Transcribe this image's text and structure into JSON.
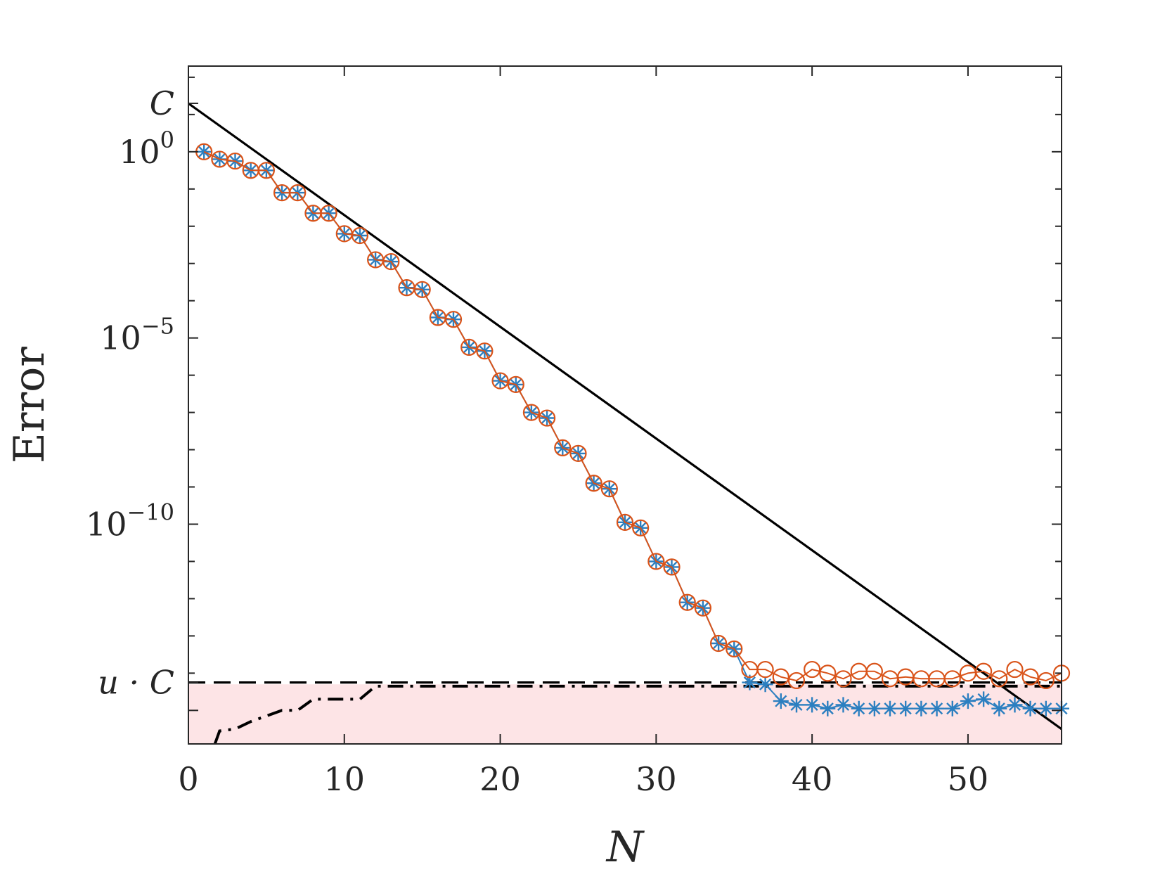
{
  "chart_data": {
    "type": "line",
    "xlabel": "N",
    "ylabel": "Error",
    "xlim": [
      0,
      56
    ],
    "ylim_log10": [
      -15.9,
      2.3
    ],
    "y_scale": "log",
    "grid": false,
    "xticks": [
      0,
      10,
      20,
      30,
      40,
      50
    ],
    "yticks": [
      {
        "base": "10",
        "exp": "0",
        "value": 0
      },
      {
        "base": "10",
        "exp": "−5",
        "value": -5
      },
      {
        "base": "10",
        "exp": "−10",
        "value": -10
      }
    ],
    "special_yticks": [
      {
        "label": "C",
        "value": 1.3
      },
      {
        "label": "u · C",
        "value": -14.25
      }
    ],
    "colors": {
      "series_asterisk": "#2c7fc0",
      "series_circle": "#d95319",
      "bound_line": "#000000",
      "shaded_region": "#fde4e6"
    },
    "shaded_region": {
      "y_from": -15.9,
      "y_to": -14.3
    },
    "series": [
      {
        "marker": "asterisk",
        "color": "#2c7fc0",
        "x": [
          1,
          2,
          3,
          4,
          5,
          6,
          7,
          8,
          9,
          10,
          11,
          12,
          13,
          14,
          15,
          16,
          17,
          18,
          19,
          20,
          21,
          22,
          23,
          24,
          25,
          26,
          27,
          28,
          29,
          30,
          31,
          32,
          33,
          34,
          35,
          36,
          37,
          38,
          39,
          40,
          41,
          42,
          43,
          44,
          45,
          46,
          47,
          48,
          49,
          50,
          51,
          52,
          53,
          54,
          55,
          56
        ],
        "log10_y": [
          0.0,
          -0.2,
          -0.25,
          -0.5,
          -0.5,
          -1.1,
          -1.1,
          -1.65,
          -1.65,
          -2.2,
          -2.25,
          -2.9,
          -2.95,
          -3.65,
          -3.7,
          -4.45,
          -4.5,
          -5.25,
          -5.35,
          -6.15,
          -6.25,
          -7.0,
          -7.15,
          -7.95,
          -8.1,
          -8.9,
          -9.05,
          -9.95,
          -10.1,
          -11.0,
          -11.15,
          -12.1,
          -12.25,
          -13.2,
          -13.35,
          -14.25,
          -14.3,
          -14.75,
          -14.85,
          -14.85,
          -14.95,
          -14.85,
          -14.95,
          -14.95,
          -14.95,
          -14.95,
          -14.95,
          -14.95,
          -14.95,
          -14.75,
          -14.7,
          -14.95,
          -14.85,
          -14.95,
          -14.95,
          -14.95
        ]
      },
      {
        "marker": "circle",
        "color": "#d95319",
        "x": [
          1,
          2,
          3,
          4,
          5,
          6,
          7,
          8,
          9,
          10,
          11,
          12,
          13,
          14,
          15,
          16,
          17,
          18,
          19,
          20,
          21,
          22,
          23,
          24,
          25,
          26,
          27,
          28,
          29,
          30,
          31,
          32,
          33,
          34,
          35,
          36,
          37,
          38,
          39,
          40,
          41,
          42,
          43,
          44,
          45,
          46,
          47,
          48,
          49,
          50,
          51,
          52,
          53,
          54,
          55,
          56
        ],
        "log10_y": [
          0.0,
          -0.2,
          -0.25,
          -0.5,
          -0.5,
          -1.1,
          -1.1,
          -1.65,
          -1.65,
          -2.2,
          -2.25,
          -2.9,
          -2.95,
          -3.65,
          -3.7,
          -4.45,
          -4.5,
          -5.25,
          -5.35,
          -6.15,
          -6.25,
          -7.0,
          -7.15,
          -7.95,
          -8.1,
          -8.9,
          -9.05,
          -9.95,
          -10.1,
          -11.0,
          -11.15,
          -12.1,
          -12.25,
          -13.2,
          -13.35,
          -13.9,
          -13.9,
          -14.1,
          -14.2,
          -13.9,
          -14.0,
          -14.15,
          -13.95,
          -13.95,
          -14.15,
          -14.1,
          -14.15,
          -14.15,
          -14.15,
          -14.0,
          -13.95,
          -14.15,
          -13.9,
          -14.1,
          -14.2,
          -14.0
        ]
      },
      {
        "style": "solid",
        "color": "#000000",
        "x": [
          0,
          56
        ],
        "log10_y": [
          1.3,
          -15.5
        ]
      },
      {
        "style": "dashed",
        "color": "#000000",
        "x": [
          0,
          56
        ],
        "log10_y": [
          -14.25,
          -14.25
        ]
      },
      {
        "style": "dash-dot",
        "color": "#000000",
        "x": [
          1.7,
          2,
          3,
          4,
          5,
          6,
          7,
          8,
          9,
          10,
          11,
          12,
          13,
          14,
          20,
          30,
          40,
          50,
          56
        ],
        "log10_y": [
          -15.9,
          -15.55,
          -15.5,
          -15.3,
          -15.15,
          -15.0,
          -15.0,
          -14.7,
          -14.7,
          -14.7,
          -14.7,
          -14.35,
          -14.35,
          -14.35,
          -14.35,
          -14.35,
          -14.35,
          -14.35,
          -14.35
        ]
      }
    ]
  }
}
